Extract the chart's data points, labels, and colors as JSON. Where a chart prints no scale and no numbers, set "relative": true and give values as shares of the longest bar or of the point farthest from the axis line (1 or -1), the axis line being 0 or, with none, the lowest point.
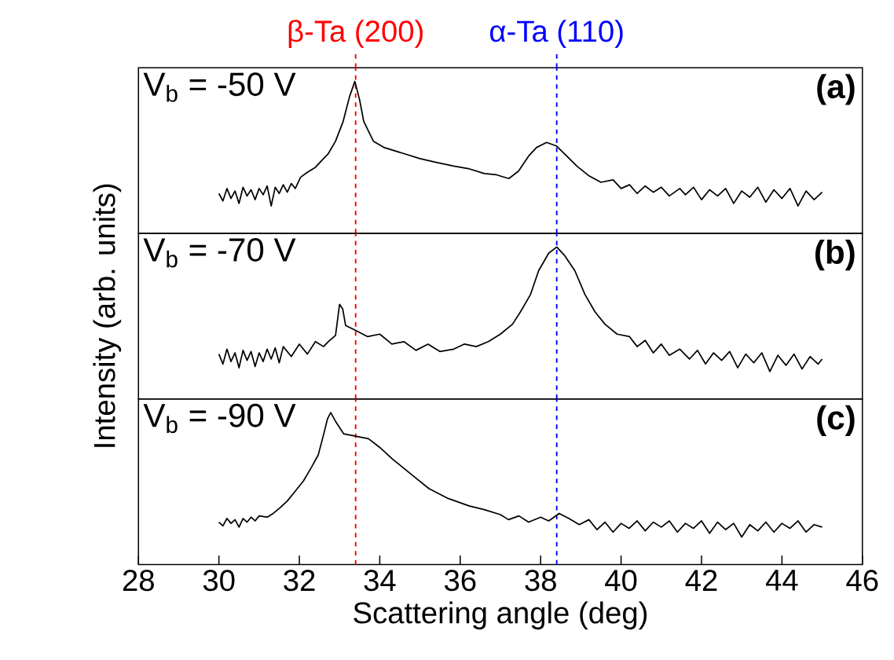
{
  "chart_data": [
    {
      "type": "line",
      "relative": true,
      "xlim": [
        28,
        46
      ],
      "tick_labels": false,
      "annotations": [
        "V$_{b}$ = -50 V",
        "(a)"
      ],
      "ref_lines": [
        {
          "axis": "x",
          "value": 33.4,
          "label": "β-Ta (200)",
          "color": "#ff0000",
          "line_style": "dashed"
        },
        {
          "axis": "x",
          "value": 38.4,
          "label": "α-Ta (110)",
          "color": "#0000ff",
          "line_style": "dashed"
        }
      ],
      "series": [
        {
          "color": "#000000",
          "x": [
            30.0,
            30.1,
            30.2,
            30.3,
            30.4,
            30.5,
            30.6,
            30.7,
            30.8,
            30.9,
            31.0,
            31.1,
            31.2,
            31.3,
            31.4,
            31.5,
            31.6,
            31.7,
            31.8,
            31.9,
            32.03,
            32.2,
            32.4,
            32.6,
            32.72,
            32.9,
            33.09,
            33.25,
            33.38,
            33.5,
            33.6,
            33.84,
            34.1,
            34.6,
            35.0,
            35.4,
            35.84,
            36.2,
            36.6,
            36.9,
            37.21,
            37.45,
            37.7,
            37.9,
            38.15,
            38.4,
            38.59,
            38.9,
            39.21,
            39.5,
            39.8,
            40.0,
            40.21,
            40.4,
            40.6,
            40.8,
            41.0,
            41.2,
            41.46,
            41.6,
            41.8,
            42.0,
            42.2,
            42.4,
            42.6,
            42.8,
            43.0,
            43.2,
            43.4,
            43.6,
            43.8,
            44.0,
            44.2,
            44.4,
            44.6,
            44.8,
            45.0
          ],
          "values": [
            0.1,
            0.04,
            0.14,
            0.06,
            0.12,
            0.02,
            0.15,
            0.08,
            0.13,
            0.05,
            0.14,
            0.09,
            0.16,
            0.0,
            0.15,
            0.1,
            0.17,
            0.11,
            0.18,
            0.14,
            0.23,
            0.27,
            0.31,
            0.38,
            0.42,
            0.52,
            0.68,
            0.88,
            1.0,
            0.85,
            0.68,
            0.52,
            0.47,
            0.42,
            0.38,
            0.35,
            0.32,
            0.3,
            0.26,
            0.25,
            0.22,
            0.28,
            0.4,
            0.47,
            0.51,
            0.48,
            0.42,
            0.32,
            0.24,
            0.19,
            0.21,
            0.14,
            0.17,
            0.1,
            0.16,
            0.11,
            0.15,
            0.08,
            0.14,
            0.09,
            0.15,
            0.05,
            0.13,
            0.08,
            0.14,
            0.02,
            0.12,
            0.07,
            0.15,
            0.03,
            0.13,
            0.06,
            0.14,
            0.0,
            0.12,
            0.05,
            0.11
          ]
        }
      ]
    },
    {
      "type": "line",
      "relative": true,
      "xlim": [
        28,
        46
      ],
      "tick_labels": false,
      "ylabel": "Intensity (arb. units)",
      "annotations": [
        "V$_{b}$ = -70 V",
        "(b)"
      ],
      "ref_lines": [
        {
          "axis": "x",
          "value": 33.4,
          "color": "#ff0000",
          "line_style": "dashed"
        },
        {
          "axis": "x",
          "value": 38.4,
          "color": "#0000ff",
          "line_style": "dashed"
        }
      ],
      "series": [
        {
          "color": "#000000",
          "x": [
            30.0,
            30.1,
            30.2,
            30.3,
            30.4,
            30.5,
            30.6,
            30.7,
            30.8,
            30.9,
            31.0,
            31.1,
            31.2,
            31.3,
            31.4,
            31.5,
            31.6,
            31.8,
            32.0,
            32.2,
            32.4,
            32.6,
            32.72,
            32.9,
            33.0,
            33.08,
            33.15,
            33.4,
            33.7,
            34.0,
            34.3,
            34.6,
            34.9,
            35.2,
            35.5,
            35.84,
            36.1,
            36.4,
            36.7,
            37.0,
            37.3,
            37.5,
            37.75,
            37.95,
            38.2,
            38.4,
            38.6,
            38.85,
            39.1,
            39.35,
            39.6,
            39.9,
            40.21,
            40.4,
            40.6,
            40.8,
            41.0,
            41.2,
            41.46,
            41.7,
            41.9,
            42.1,
            42.3,
            42.5,
            42.7,
            42.9,
            43.1,
            43.3,
            43.5,
            43.7,
            43.9,
            44.1,
            44.3,
            44.5,
            44.7,
            44.9,
            45.0
          ],
          "values": [
            0.14,
            0.06,
            0.18,
            0.08,
            0.15,
            0.03,
            0.17,
            0.09,
            0.16,
            0.04,
            0.15,
            0.08,
            0.18,
            0.1,
            0.19,
            0.07,
            0.2,
            0.12,
            0.22,
            0.14,
            0.24,
            0.2,
            0.24,
            0.29,
            0.54,
            0.5,
            0.37,
            0.33,
            0.28,
            0.3,
            0.22,
            0.24,
            0.17,
            0.22,
            0.16,
            0.18,
            0.22,
            0.2,
            0.24,
            0.3,
            0.38,
            0.48,
            0.62,
            0.81,
            0.95,
            1.0,
            0.93,
            0.81,
            0.62,
            0.48,
            0.38,
            0.3,
            0.28,
            0.2,
            0.25,
            0.15,
            0.22,
            0.13,
            0.18,
            0.1,
            0.17,
            0.06,
            0.15,
            0.09,
            0.16,
            0.03,
            0.14,
            0.07,
            0.15,
            0.0,
            0.13,
            0.05,
            0.14,
            0.02,
            0.12,
            0.06,
            0.1
          ]
        }
      ]
    },
    {
      "type": "line",
      "relative": true,
      "xlim": [
        28,
        46
      ],
      "tick_labels": "x",
      "xlabel": "Scattering angle (deg)",
      "xticks": [
        28,
        30,
        32,
        34,
        36,
        38,
        40,
        42,
        44,
        46
      ],
      "annotations": [
        "V$_{b}$ = -90 V",
        "(c)"
      ],
      "ref_lines": [
        {
          "axis": "x",
          "value": 33.4,
          "color": "#ff0000",
          "line_style": "dashed"
        },
        {
          "axis": "x",
          "value": 38.4,
          "color": "#0000ff",
          "line_style": "dashed"
        }
      ],
      "series": [
        {
          "color": "#000000",
          "x": [
            30.0,
            30.1,
            30.2,
            30.3,
            30.4,
            30.5,
            30.6,
            30.7,
            30.8,
            30.9,
            31.0,
            31.2,
            31.35,
            31.5,
            31.7,
            31.9,
            32.1,
            32.3,
            32.47,
            32.6,
            32.7,
            32.78,
            32.9,
            33.1,
            33.4,
            33.72,
            34.0,
            34.34,
            34.8,
            35.22,
            35.7,
            36.22,
            36.6,
            37.0,
            37.2,
            37.46,
            37.7,
            38.0,
            38.2,
            38.46,
            38.7,
            38.96,
            39.2,
            39.4,
            39.6,
            39.8,
            40.0,
            40.2,
            40.4,
            40.6,
            40.8,
            41.0,
            41.2,
            41.4,
            41.6,
            41.8,
            42.0,
            42.2,
            42.4,
            42.6,
            42.8,
            43.0,
            43.2,
            43.4,
            43.6,
            43.8,
            44.0,
            44.2,
            44.4,
            44.6,
            44.8,
            45.0
          ],
          "values": [
            0.12,
            0.09,
            0.15,
            0.11,
            0.14,
            0.08,
            0.15,
            0.12,
            0.16,
            0.13,
            0.17,
            0.16,
            0.19,
            0.23,
            0.29,
            0.37,
            0.45,
            0.56,
            0.66,
            0.82,
            0.95,
            1.0,
            0.93,
            0.83,
            0.81,
            0.79,
            0.72,
            0.62,
            0.5,
            0.39,
            0.31,
            0.25,
            0.22,
            0.18,
            0.14,
            0.17,
            0.12,
            0.16,
            0.13,
            0.19,
            0.15,
            0.1,
            0.14,
            0.06,
            0.12,
            0.04,
            0.11,
            0.07,
            0.13,
            0.05,
            0.12,
            0.08,
            0.13,
            0.04,
            0.11,
            0.07,
            0.13,
            0.03,
            0.12,
            0.06,
            0.11,
            0.0,
            0.1,
            0.05,
            0.12,
            0.04,
            0.11,
            0.07,
            0.13,
            0.04,
            0.1,
            0.08
          ]
        }
      ]
    }
  ]
}
